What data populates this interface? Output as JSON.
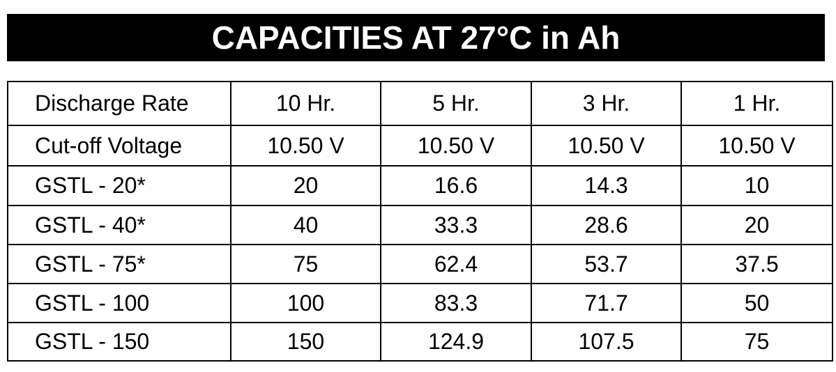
{
  "header": {
    "title": "CAPACITIES AT 27°C in Ah"
  },
  "table": {
    "rows": [
      [
        "Discharge Rate",
        "10 Hr.",
        "5 Hr.",
        "3 Hr.",
        "1 Hr."
      ],
      [
        "Cut-off Voltage",
        "10.50 V",
        "10.50 V",
        "10.50 V",
        "10.50 V"
      ],
      [
        "GSTL - 20*",
        "20",
        "16.6",
        "14.3",
        "10"
      ],
      [
        "GSTL - 40*",
        "40",
        "33.3",
        "28.6",
        "20"
      ],
      [
        "GSTL - 75*",
        "75",
        "62.4",
        "53.7",
        "37.5"
      ],
      [
        "GSTL - 100",
        "100",
        "83.3",
        "71.7",
        "50"
      ],
      [
        "GSTL - 150",
        "150",
        "124.9",
        "107.5",
        "75"
      ]
    ]
  }
}
